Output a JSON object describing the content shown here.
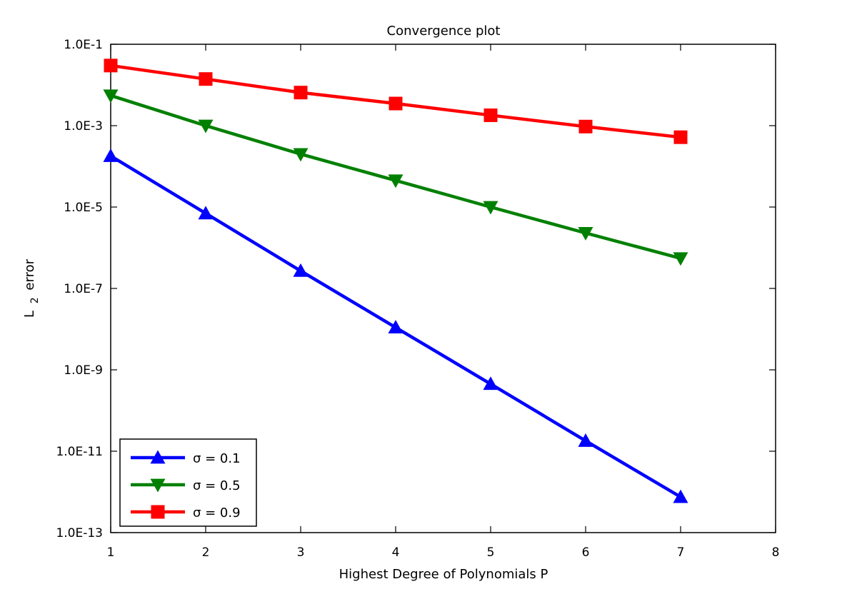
{
  "chart_data": {
    "type": "line",
    "title": "Convergence plot",
    "xlabel": "Highest Degree of Polynomials P",
    "ylabel": {
      "main": "L",
      "subscript": "2",
      "suffix": "error"
    },
    "xlim": [
      1,
      8
    ],
    "ylim": [
      1e-13,
      0.1
    ],
    "y_scale": "log",
    "x_ticks": [
      "1",
      "2",
      "3",
      "4",
      "5",
      "6",
      "7",
      "8"
    ],
    "y_ticks": [
      {
        "value": 0.1,
        "label": "1.0E-1"
      },
      {
        "value": 0.001,
        "label": "1.0E-3"
      },
      {
        "value": 1e-05,
        "label": "1.0E-5"
      },
      {
        "value": 1e-07,
        "label": "1.0E-7"
      },
      {
        "value": 1e-09,
        "label": "1.0E-9"
      },
      {
        "value": 1e-11,
        "label": "1.0E-11"
      },
      {
        "value": 1e-13,
        "label": "1.0E-13"
      }
    ],
    "grid": false,
    "legend_position": "bottom-left",
    "series": [
      {
        "name": "σ = 0.1",
        "color": "#0000ff",
        "marker": "triangle-up",
        "x": [
          1,
          2,
          3,
          4,
          5,
          6,
          7
        ],
        "y": [
          0.00018,
          7e-06,
          2.7e-07,
          1.1e-08,
          4.5e-10,
          1.8e-11,
          7.5e-13
        ]
      },
      {
        "name": "σ = 0.5",
        "color": "#008000",
        "marker": "triangle-down",
        "x": [
          1,
          2,
          3,
          4,
          5,
          6,
          7
        ],
        "y": [
          0.0055,
          0.001,
          0.0002,
          4.5e-05,
          1e-05,
          2.3e-06,
          5.5e-07
        ]
      },
      {
        "name": "σ = 0.9",
        "color": "#ff0000",
        "marker": "square",
        "x": [
          1,
          2,
          3,
          4,
          5,
          6,
          7
        ],
        "y": [
          0.03,
          0.014,
          0.0065,
          0.0035,
          0.0018,
          0.00095,
          0.00052
        ]
      }
    ]
  }
}
